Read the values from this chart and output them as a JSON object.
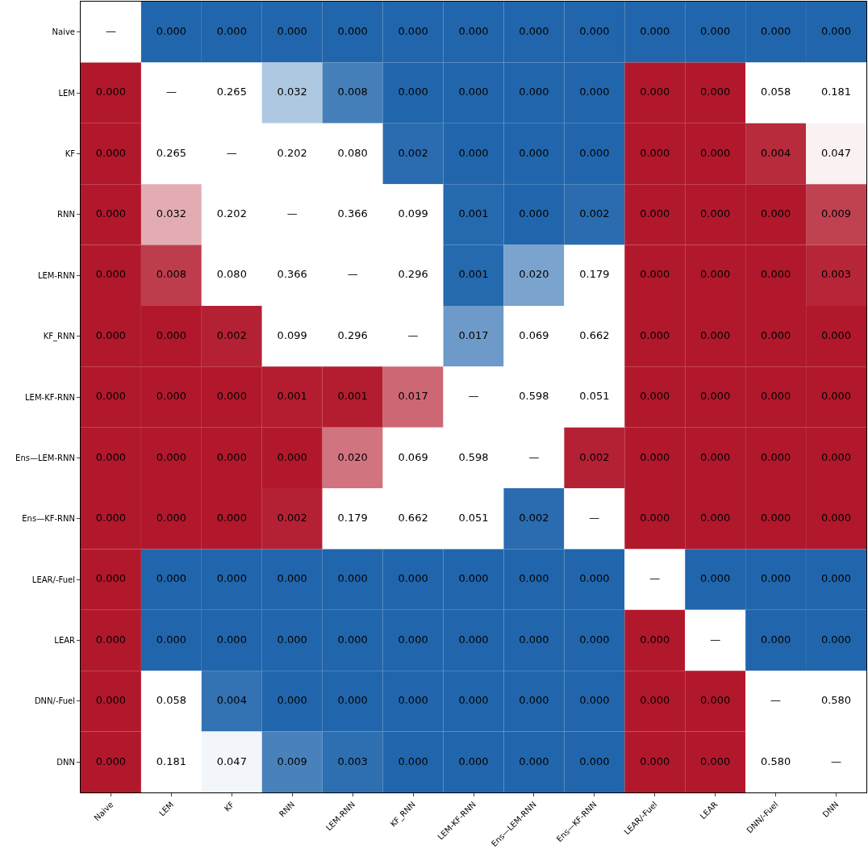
{
  "chart_data": {
    "type": "heatmap",
    "categories": [
      "Naive",
      "LEM",
      "KF",
      "RNN",
      "LEM-RNN",
      "KF_RNN",
      "LEM-KF-RNN",
      "Ens—LEM-RNN",
      "Ens—KF-RNN",
      "LEAR/-Fuel",
      "LEAR",
      "DNN/-Fuel",
      "DNN"
    ],
    "y_categories": [
      "Naive",
      "LEM",
      "KF",
      "RNN",
      "LEM-RNN",
      "KF_RNN",
      "LEM-KF-RNN",
      "Ens—LEM-RNN",
      "Ens—KF-RNN",
      "LEAR/-Fuel",
      "LEAR",
      "DNN/-Fuel",
      "DNN"
    ],
    "cells": [
      [
        null,
        0,
        0,
        0,
        0,
        0,
        0,
        0,
        0,
        0,
        0,
        0,
        0
      ],
      [
        0,
        null,
        0.265,
        0.032,
        0.008,
        0,
        0,
        0,
        0,
        0,
        0,
        0.058,
        0.181
      ],
      [
        0,
        0.265,
        null,
        0.202,
        0.08,
        0.002,
        0,
        0,
        0,
        0,
        0,
        0.004,
        0.047
      ],
      [
        0,
        0.032,
        0.202,
        null,
        0.366,
        0.099,
        0.001,
        0,
        0.002,
        0,
        0,
        0,
        0.009
      ],
      [
        0,
        0.008,
        0.08,
        0.366,
        null,
        0.296,
        0.001,
        0.02,
        0.179,
        0,
        0,
        0,
        0.003
      ],
      [
        0,
        0,
        0.002,
        0.099,
        0.296,
        null,
        0.017,
        0.069,
        0.662,
        0,
        0,
        0,
        0
      ],
      [
        0,
        0,
        0,
        0.001,
        0.001,
        0.017,
        null,
        0.598,
        0.051,
        0,
        0,
        0,
        0
      ],
      [
        0,
        0,
        0,
        0,
        0.02,
        0.069,
        0.598,
        null,
        0.002,
        0,
        0,
        0,
        0
      ],
      [
        0,
        0,
        0,
        0.002,
        0.179,
        0.662,
        0.051,
        0.002,
        null,
        0,
        0,
        0,
        0
      ],
      [
        0,
        0,
        0,
        0,
        0,
        0,
        0,
        0,
        0,
        null,
        0,
        0,
        0
      ],
      [
        0,
        0,
        0,
        0,
        0,
        0,
        0,
        0,
        0,
        0,
        null,
        0,
        0
      ],
      [
        0,
        0.058,
        0.004,
        0,
        0,
        0,
        0,
        0,
        0,
        0,
        0,
        null,
        0.58
      ],
      [
        0,
        0.181,
        0.047,
        0.009,
        0.003,
        0,
        0,
        0,
        0,
        0,
        0,
        0.58,
        null
      ]
    ],
    "cell_labels": [
      [
        "—",
        "0.000",
        "0.000",
        "0.000",
        "0.000",
        "0.000",
        "0.000",
        "0.000",
        "0.000",
        "0.000",
        "0.000",
        "0.000",
        "0.000"
      ],
      [
        "0.000",
        "—",
        "0.265",
        "0.032",
        "0.008",
        "0.000",
        "0.000",
        "0.000",
        "0.000",
        "0.000",
        "0.000",
        "0.058",
        "0.181"
      ],
      [
        "0.000",
        "0.265",
        "—",
        "0.202",
        "0.080",
        "0.002",
        "0.000",
        "0.000",
        "0.000",
        "0.000",
        "0.000",
        "0.004",
        "0.047"
      ],
      [
        "0.000",
        "0.032",
        "0.202",
        "—",
        "0.366",
        "0.099",
        "0.001",
        "0.000",
        "0.002",
        "0.000",
        "0.000",
        "0.000",
        "0.009"
      ],
      [
        "0.000",
        "0.008",
        "0.080",
        "0.366",
        "—",
        "0.296",
        "0.001",
        "0.020",
        "0.179",
        "0.000",
        "0.000",
        "0.000",
        "0.003"
      ],
      [
        "0.000",
        "0.000",
        "0.002",
        "0.099",
        "0.296",
        "—",
        "0.017",
        "0.069",
        "0.662",
        "0.000",
        "0.000",
        "0.000",
        "0.000"
      ],
      [
        "0.000",
        "0.000",
        "0.000",
        "0.001",
        "0.001",
        "0.017",
        "—",
        "0.598",
        "0.051",
        "0.000",
        "0.000",
        "0.000",
        "0.000"
      ],
      [
        "0.000",
        "0.000",
        "0.000",
        "0.000",
        "0.020",
        "0.069",
        "0.598",
        "—",
        "0.002",
        "0.000",
        "0.000",
        "0.000",
        "0.000"
      ],
      [
        "0.000",
        "0.000",
        "0.000",
        "0.002",
        "0.179",
        "0.662",
        "0.051",
        "0.002",
        "—",
        "0.000",
        "0.000",
        "0.000",
        "0.000"
      ],
      [
        "0.000",
        "0.000",
        "0.000",
        "0.000",
        "0.000",
        "0.000",
        "0.000",
        "0.000",
        "0.000",
        "—",
        "0.000",
        "0.000",
        "0.000"
      ],
      [
        "0.000",
        "0.000",
        "0.000",
        "0.000",
        "0.000",
        "0.000",
        "0.000",
        "0.000",
        "0.000",
        "0.000",
        "—",
        "0.000",
        "0.000"
      ],
      [
        "0.000",
        "0.058",
        "0.004",
        "0.000",
        "0.000",
        "0.000",
        "0.000",
        "0.000",
        "0.000",
        "0.000",
        "0.000",
        "—",
        "0.580"
      ],
      [
        "0.000",
        "0.181",
        "0.047",
        "0.009",
        "0.003",
        "0.000",
        "0.000",
        "0.000",
        "0.000",
        "0.000",
        "0.000",
        "0.580",
        "—"
      ]
    ],
    "colors": [
      [
        "#ffffff",
        "#2166ac",
        "#2166ac",
        "#2166ac",
        "#2166ac",
        "#2166ac",
        "#2166ac",
        "#2166ac",
        "#2166ac",
        "#2166ac",
        "#2166ac",
        "#2166ac",
        "#2166ac"
      ],
      [
        "#b2182b",
        "#ffffff",
        "#ffffff",
        "#afc8e1",
        "#457fb9",
        "#2166ac",
        "#2166ac",
        "#2166ac",
        "#2166ac",
        "#b2182b",
        "#b2182b",
        "#ffffff",
        "#ffffff"
      ],
      [
        "#b2182b",
        "#ffffff",
        "#ffffff",
        "#ffffff",
        "#ffffff",
        "#2a6caf",
        "#2166ac",
        "#2166ac",
        "#2166ac",
        "#b2182b",
        "#b2182b",
        "#b82b3c",
        "#faf1f2"
      ],
      [
        "#b2182b",
        "#e3acb3",
        "#ffffff",
        "#ffffff",
        "#ffffff",
        "#ffffff",
        "#2569ae",
        "#2166ac",
        "#2a6caf",
        "#b2182b",
        "#b2182b",
        "#b2182b",
        "#c04251"
      ],
      [
        "#b2182b",
        "#be3d4d",
        "#ffffff",
        "#ffffff",
        "#ffffff",
        "#ffffff",
        "#2569ae",
        "#7aa3cd",
        "#ffffff",
        "#b2182b",
        "#b2182b",
        "#b2182b",
        "#b72638"
      ],
      [
        "#b2182b",
        "#b2182b",
        "#b52134",
        "#ffffff",
        "#ffffff",
        "#ffffff",
        "#6d9ac8",
        "#ffffff",
        "#ffffff",
        "#b2182b",
        "#b2182b",
        "#b2182b",
        "#b2182b"
      ],
      [
        "#b2182b",
        "#b2182b",
        "#b2182b",
        "#b41d2f",
        "#b41d2f",
        "#cc6773",
        "#ffffff",
        "#ffffff",
        "#ffffff",
        "#b2182b",
        "#b2182b",
        "#b2182b",
        "#b2182b"
      ],
      [
        "#b2182b",
        "#b2182b",
        "#b2182b",
        "#b2182b",
        "#d17480",
        "#ffffff",
        "#ffffff",
        "#ffffff",
        "#b52134",
        "#b2182b",
        "#b2182b",
        "#b2182b",
        "#b2182b"
      ],
      [
        "#b2182b",
        "#b2182b",
        "#b2182b",
        "#b52134",
        "#ffffff",
        "#ffffff",
        "#ffffff",
        "#2a6caf",
        "#ffffff",
        "#b2182b",
        "#b2182b",
        "#b2182b",
        "#b2182b"
      ],
      [
        "#b2182b",
        "#2166ac",
        "#2166ac",
        "#2166ac",
        "#2166ac",
        "#2166ac",
        "#2166ac",
        "#2166ac",
        "#2166ac",
        "#ffffff",
        "#2166ac",
        "#2166ac",
        "#2166ac"
      ],
      [
        "#b2182b",
        "#2166ac",
        "#2166ac",
        "#2166ac",
        "#2166ac",
        "#2166ac",
        "#2166ac",
        "#2166ac",
        "#2166ac",
        "#b2182b",
        "#ffffff",
        "#2166ac",
        "#2166ac"
      ],
      [
        "#b2182b",
        "#ffffff",
        "#3372b3",
        "#2166ac",
        "#2166ac",
        "#2166ac",
        "#2166ac",
        "#2166ac",
        "#2166ac",
        "#b2182b",
        "#b2182b",
        "#ffffff",
        "#ffffff"
      ],
      [
        "#b2182b",
        "#ffffff",
        "#f2f6fa",
        "#4982bb",
        "#2e6fb1",
        "#2166ac",
        "#2166ac",
        "#2166ac",
        "#2166ac",
        "#b2182b",
        "#b2182b",
        "#ffffff",
        "#ffffff"
      ]
    ]
  }
}
